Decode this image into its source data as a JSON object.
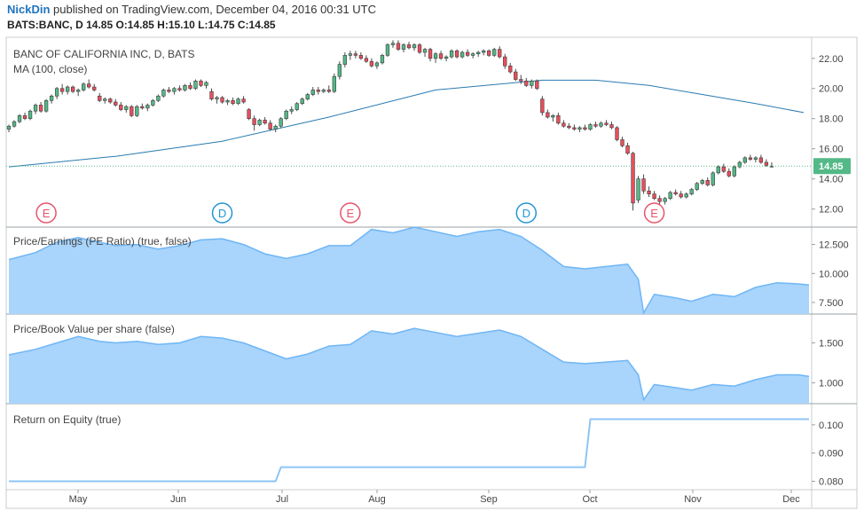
{
  "header": {
    "author": "NickDin",
    "published_text": "published on TradingView.com, December 04, 2016 00:31 UTC",
    "ticker_line": "BATS:BANC, D  14.85 O:14.85 H:15.10 L:14.75 C:14.85"
  },
  "colors": {
    "up": "#53b987",
    "down": "#eb4d5c",
    "ma": "#2a7ab0",
    "area_fill": "#a9d4fb",
    "area_line": "#6fb6f5",
    "roe_line": "#8dc6f5",
    "price_tag": "#53b987",
    "event_e": "#e8526a",
    "event_d": "#2196d6"
  },
  "chart_data": [
    {
      "type": "candlestick",
      "title": "BANC OF CALIFORNIA INC, D, BATS",
      "indicator": "MA (100, close)",
      "ylim": [
        10.8,
        23.4
      ],
      "y_ticks": [
        "22.00",
        "20.00",
        "18.00",
        "16.00",
        "14.00",
        "12.00"
      ],
      "last_price": "14.85",
      "x_ticks": [
        "May",
        "Jun",
        "Jul",
        "Aug",
        "Sep",
        "Oct",
        "Nov",
        "Dec"
      ],
      "candles": [
        [
          17.3,
          17.6,
          17.1,
          17.5
        ],
        [
          17.5,
          17.9,
          17.4,
          17.8
        ],
        [
          17.8,
          18.3,
          17.7,
          18.2
        ],
        [
          18.2,
          18.4,
          17.9,
          18.0
        ],
        [
          18.0,
          18.6,
          17.9,
          18.5
        ],
        [
          18.5,
          19.0,
          18.3,
          18.9
        ],
        [
          18.9,
          19.1,
          18.4,
          18.5
        ],
        [
          18.5,
          19.3,
          18.4,
          19.2
        ],
        [
          19.2,
          19.6,
          19.0,
          19.5
        ],
        [
          19.5,
          20.1,
          19.3,
          20.0
        ],
        [
          20.0,
          20.3,
          19.6,
          19.8
        ],
        [
          19.8,
          20.2,
          19.6,
          20.1
        ],
        [
          20.1,
          20.2,
          19.7,
          19.8
        ],
        [
          19.8,
          20.0,
          19.5,
          19.9
        ],
        [
          19.9,
          20.4,
          19.8,
          20.3
        ],
        [
          20.3,
          20.6,
          20.0,
          20.1
        ],
        [
          20.1,
          20.3,
          19.8,
          19.9
        ],
        [
          19.5,
          19.7,
          19.1,
          19.2
        ],
        [
          19.2,
          19.4,
          19.0,
          19.3
        ],
        [
          19.3,
          19.4,
          19.0,
          19.1
        ],
        [
          19.1,
          19.3,
          18.8,
          18.9
        ],
        [
          18.9,
          19.1,
          18.5,
          18.6
        ],
        [
          18.6,
          18.9,
          18.4,
          18.8
        ],
        [
          18.8,
          18.9,
          18.1,
          18.2
        ],
        [
          18.2,
          18.9,
          18.1,
          18.8
        ],
        [
          18.8,
          19.0,
          18.6,
          18.7
        ],
        [
          18.7,
          19.0,
          18.5,
          18.9
        ],
        [
          18.9,
          19.3,
          18.8,
          19.2
        ],
        [
          19.2,
          19.6,
          19.1,
          19.5
        ],
        [
          19.5,
          20.0,
          19.4,
          19.9
        ],
        [
          19.9,
          20.1,
          19.7,
          19.8
        ],
        [
          19.8,
          20.1,
          19.6,
          20.0
        ],
        [
          20.0,
          20.2,
          19.8,
          19.9
        ],
        [
          19.9,
          20.3,
          19.8,
          20.2
        ],
        [
          20.2,
          20.4,
          19.9,
          20.0
        ],
        [
          20.0,
          20.6,
          19.9,
          20.5
        ],
        [
          20.5,
          20.6,
          20.1,
          20.2
        ],
        [
          20.2,
          20.5,
          20.0,
          20.4
        ],
        [
          19.8,
          20.0,
          19.2,
          19.3
        ],
        [
          19.3,
          19.5,
          19.0,
          19.4
        ],
        [
          19.4,
          19.5,
          19.0,
          19.1
        ],
        [
          19.1,
          19.3,
          18.9,
          19.2
        ],
        [
          19.2,
          19.4,
          18.9,
          19.0
        ],
        [
          19.0,
          19.4,
          18.9,
          19.3
        ],
        [
          19.3,
          19.5,
          19.0,
          19.1
        ],
        [
          18.6,
          18.7,
          17.9,
          18.0
        ],
        [
          18.0,
          18.2,
          17.2,
          17.6
        ],
        [
          17.6,
          18.0,
          17.5,
          17.9
        ],
        [
          17.9,
          18.1,
          17.6,
          17.7
        ],
        [
          17.7,
          17.9,
          17.2,
          17.3
        ],
        [
          17.3,
          17.6,
          17.1,
          17.5
        ],
        [
          17.5,
          18.1,
          17.4,
          18.0
        ],
        [
          18.0,
          18.6,
          17.9,
          18.5
        ],
        [
          18.5,
          18.8,
          18.3,
          18.6
        ],
        [
          18.6,
          19.1,
          18.5,
          19.0
        ],
        [
          19.0,
          19.4,
          18.9,
          19.3
        ],
        [
          19.3,
          19.7,
          19.2,
          19.6
        ],
        [
          19.6,
          20.1,
          19.5,
          19.9
        ],
        [
          19.9,
          20.1,
          19.6,
          19.8
        ],
        [
          19.8,
          20.0,
          19.7,
          19.9
        ],
        [
          19.9,
          20.2,
          19.7,
          19.8
        ],
        [
          19.8,
          21.0,
          19.7,
          20.8
        ],
        [
          20.8,
          21.8,
          20.6,
          21.6
        ],
        [
          21.6,
          22.4,
          21.4,
          22.2
        ],
        [
          22.2,
          22.5,
          21.9,
          22.3
        ],
        [
          22.3,
          22.5,
          22.0,
          22.2
        ],
        [
          22.2,
          22.4,
          21.9,
          22.0
        ],
        [
          22.0,
          22.2,
          21.7,
          21.8
        ],
        [
          21.8,
          22.0,
          21.4,
          21.5
        ],
        [
          21.5,
          21.8,
          21.3,
          21.7
        ],
        [
          21.7,
          22.3,
          21.6,
          22.2
        ],
        [
          22.2,
          23.0,
          22.1,
          22.9
        ],
        [
          22.9,
          23.2,
          22.7,
          23.0
        ],
        [
          23.0,
          23.2,
          22.5,
          22.6
        ],
        [
          22.6,
          23.0,
          22.4,
          22.9
        ],
        [
          22.9,
          23.1,
          22.6,
          22.7
        ],
        [
          22.7,
          23.0,
          22.5,
          22.9
        ],
        [
          22.9,
          23.0,
          22.3,
          22.4
        ],
        [
          22.4,
          22.7,
          22.1,
          22.6
        ],
        [
          22.6,
          22.7,
          21.8,
          22.0
        ],
        [
          22.0,
          22.4,
          21.7,
          22.3
        ],
        [
          22.3,
          22.5,
          21.9,
          22.0
        ],
        [
          22.0,
          22.2,
          21.8,
          22.1
        ],
        [
          22.1,
          22.6,
          22.0,
          22.5
        ],
        [
          22.5,
          22.6,
          22.0,
          22.1
        ],
        [
          22.1,
          22.5,
          22.0,
          22.4
        ],
        [
          22.4,
          22.6,
          22.1,
          22.2
        ],
        [
          22.2,
          22.4,
          22.0,
          22.3
        ],
        [
          22.3,
          22.5,
          22.1,
          22.4
        ],
        [
          22.4,
          22.6,
          22.2,
          22.5
        ],
        [
          22.5,
          22.6,
          22.1,
          22.2
        ],
        [
          22.2,
          22.7,
          22.1,
          22.6
        ],
        [
          22.6,
          22.8,
          22.0,
          22.1
        ],
        [
          22.1,
          22.3,
          21.3,
          21.5
        ],
        [
          21.5,
          21.7,
          21.0,
          21.1
        ],
        [
          21.1,
          21.3,
          20.5,
          20.6
        ],
        [
          20.6,
          20.9,
          20.3,
          20.5
        ],
        [
          20.5,
          20.7,
          20.1,
          20.2
        ],
        [
          20.2,
          20.6,
          20.0,
          20.5
        ],
        [
          20.5,
          20.6,
          19.9,
          20.0
        ],
        [
          19.3,
          19.5,
          18.2,
          18.4
        ],
        [
          18.4,
          18.6,
          18.0,
          18.1
        ],
        [
          18.1,
          18.3,
          17.8,
          18.2
        ],
        [
          18.2,
          18.4,
          17.6,
          17.7
        ],
        [
          17.7,
          17.9,
          17.4,
          17.5
        ],
        [
          17.5,
          17.7,
          17.3,
          17.4
        ],
        [
          17.4,
          17.6,
          17.2,
          17.3
        ],
        [
          17.3,
          17.5,
          17.1,
          17.4
        ],
        [
          17.4,
          17.6,
          17.2,
          17.3
        ],
        [
          17.3,
          17.7,
          17.2,
          17.6
        ],
        [
          17.6,
          17.8,
          17.4,
          17.5
        ],
        [
          17.5,
          17.8,
          17.4,
          17.7
        ],
        [
          17.7,
          17.9,
          17.5,
          17.6
        ],
        [
          17.6,
          17.8,
          17.3,
          17.4
        ],
        [
          17.4,
          17.5,
          16.5,
          16.6
        ],
        [
          16.6,
          16.8,
          16.1,
          16.2
        ],
        [
          16.2,
          16.4,
          15.6,
          15.7
        ],
        [
          15.7,
          15.8,
          11.9,
          12.4
        ],
        [
          12.6,
          14.2,
          12.4,
          14.0
        ],
        [
          14.0,
          14.3,
          13.0,
          13.2
        ],
        [
          13.2,
          13.5,
          12.8,
          13.0
        ],
        [
          13.0,
          13.2,
          12.6,
          12.7
        ],
        [
          12.7,
          12.9,
          12.3,
          12.5
        ],
        [
          12.5,
          12.8,
          12.3,
          12.7
        ],
        [
          12.7,
          13.2,
          12.6,
          13.1
        ],
        [
          13.1,
          13.3,
          12.9,
          13.0
        ],
        [
          13.0,
          13.2,
          12.7,
          12.8
        ],
        [
          12.8,
          13.1,
          12.7,
          13.0
        ],
        [
          13.0,
          13.4,
          12.9,
          13.3
        ],
        [
          13.3,
          13.8,
          13.2,
          13.7
        ],
        [
          13.7,
          14.0,
          13.6,
          13.9
        ],
        [
          13.9,
          14.1,
          13.5,
          13.6
        ],
        [
          13.6,
          14.5,
          13.5,
          14.4
        ],
        [
          14.4,
          14.9,
          14.3,
          14.8
        ],
        [
          14.8,
          15.0,
          14.4,
          14.5
        ],
        [
          14.5,
          14.7,
          14.1,
          14.2
        ],
        [
          14.2,
          14.9,
          14.1,
          14.8
        ],
        [
          14.8,
          15.2,
          14.7,
          15.1
        ],
        [
          15.1,
          15.5,
          15.0,
          15.4
        ],
        [
          15.4,
          15.6,
          15.2,
          15.3
        ],
        [
          15.3,
          15.5,
          15.1,
          15.4
        ],
        [
          15.4,
          15.6,
          15.0,
          15.1
        ],
        [
          15.1,
          15.3,
          14.8,
          14.9
        ],
        [
          14.85,
          15.1,
          14.75,
          14.85
        ]
      ],
      "ma_100": [
        [
          0,
          14.8
        ],
        [
          20,
          15.5
        ],
        [
          40,
          16.5
        ],
        [
          60,
          18.1
        ],
        [
          80,
          19.9
        ],
        [
          100,
          20.55
        ],
        [
          110,
          20.55
        ],
        [
          120,
          20.2
        ],
        [
          130,
          19.6
        ],
        [
          140,
          19.0
        ],
        [
          149,
          18.4
        ]
      ],
      "events": [
        {
          "label": "E",
          "bar": 7,
          "kind": "earnings"
        },
        {
          "label": "D",
          "bar": 40,
          "kind": "dividend"
        },
        {
          "label": "E",
          "bar": 64,
          "kind": "earnings"
        },
        {
          "label": "D",
          "bar": 97,
          "kind": "dividend"
        },
        {
          "label": "E",
          "bar": 121,
          "kind": "earnings"
        }
      ]
    },
    {
      "type": "area",
      "title": "Price/Earnings (PE Ratio) (true, false)",
      "ylim": [
        6.5,
        14.0
      ],
      "y_ticks": [
        "12.500",
        "10.000",
        "7.500"
      ],
      "values": [
        [
          0,
          11.2
        ],
        [
          5,
          11.8
        ],
        [
          9,
          12.7
        ],
        [
          13,
          13.1
        ],
        [
          17,
          12.7
        ],
        [
          20,
          12.4
        ],
        [
          24,
          12.5
        ],
        [
          28,
          12.1
        ],
        [
          32,
          12.4
        ],
        [
          36,
          12.9
        ],
        [
          40,
          13.0
        ],
        [
          44,
          12.5
        ],
        [
          48,
          11.7
        ],
        [
          52,
          11.3
        ],
        [
          56,
          11.7
        ],
        [
          60,
          12.4
        ],
        [
          64,
          12.4
        ],
        [
          68,
          13.8
        ],
        [
          72,
          13.5
        ],
        [
          76,
          14.0
        ],
        [
          80,
          13.6
        ],
        [
          84,
          13.2
        ],
        [
          88,
          13.6
        ],
        [
          92,
          13.8
        ],
        [
          96,
          13.2
        ],
        [
          100,
          12.0
        ],
        [
          104,
          10.6
        ],
        [
          108,
          10.4
        ],
        [
          112,
          10.6
        ],
        [
          116,
          10.8
        ],
        [
          118,
          9.5
        ],
        [
          119,
          6.6
        ],
        [
          121,
          8.2
        ],
        [
          125,
          7.9
        ],
        [
          128,
          7.6
        ],
        [
          132,
          8.2
        ],
        [
          136,
          8.0
        ],
        [
          140,
          8.8
        ],
        [
          144,
          9.2
        ],
        [
          148,
          9.1
        ],
        [
          150,
          9.0
        ]
      ]
    },
    {
      "type": "area",
      "title": "Price/Book Value per share (false)",
      "ylim": [
        0.74,
        1.86
      ],
      "y_ticks": [
        "1.500",
        "1.000"
      ],
      "values": [
        [
          0,
          1.35
        ],
        [
          5,
          1.42
        ],
        [
          9,
          1.5
        ],
        [
          13,
          1.58
        ],
        [
          17,
          1.52
        ],
        [
          20,
          1.5
        ],
        [
          24,
          1.52
        ],
        [
          28,
          1.48
        ],
        [
          32,
          1.5
        ],
        [
          36,
          1.58
        ],
        [
          40,
          1.56
        ],
        [
          44,
          1.5
        ],
        [
          48,
          1.4
        ],
        [
          52,
          1.3
        ],
        [
          56,
          1.36
        ],
        [
          60,
          1.46
        ],
        [
          64,
          1.48
        ],
        [
          68,
          1.65
        ],
        [
          72,
          1.61
        ],
        [
          76,
          1.68
        ],
        [
          80,
          1.63
        ],
        [
          84,
          1.58
        ],
        [
          88,
          1.62
        ],
        [
          92,
          1.66
        ],
        [
          96,
          1.58
        ],
        [
          100,
          1.42
        ],
        [
          104,
          1.26
        ],
        [
          108,
          1.24
        ],
        [
          112,
          1.26
        ],
        [
          116,
          1.28
        ],
        [
          118,
          1.1
        ],
        [
          119,
          0.79
        ],
        [
          121,
          0.98
        ],
        [
          125,
          0.94
        ],
        [
          128,
          0.91
        ],
        [
          132,
          0.98
        ],
        [
          136,
          0.96
        ],
        [
          140,
          1.04
        ],
        [
          144,
          1.1
        ],
        [
          148,
          1.1
        ],
        [
          150,
          1.08
        ]
      ]
    },
    {
      "type": "line",
      "title": "Return on Equity (true)",
      "ylim": [
        0.077,
        0.1075
      ],
      "y_ticks": [
        "0.100",
        "0.090",
        "0.080"
      ],
      "values": [
        [
          0,
          0.08
        ],
        [
          50,
          0.08
        ],
        [
          51,
          0.085
        ],
        [
          108,
          0.085
        ],
        [
          109,
          0.102
        ],
        [
          150,
          0.102
        ]
      ]
    }
  ]
}
